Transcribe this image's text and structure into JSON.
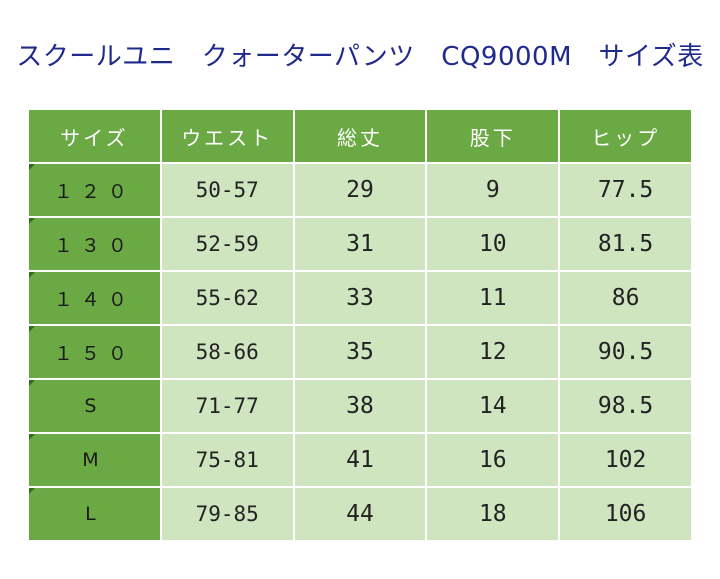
{
  "title": "スクールユニ　クォーターパンツ　CQ9000M　サイズ表",
  "headers": [
    "サイズ",
    "ウエスト",
    "総丈",
    "股下",
    "ヒップ"
  ],
  "rows": [
    {
      "size": "１２０",
      "waist": "50-57",
      "length": "29",
      "inseam": "9",
      "hip": "77.5"
    },
    {
      "size": "１３０",
      "waist": "52-59",
      "length": "31",
      "inseam": "10",
      "hip": "81.5"
    },
    {
      "size": "１４０",
      "waist": "55-62",
      "length": "33",
      "inseam": "11",
      "hip": "86"
    },
    {
      "size": "１５０",
      "waist": "58-66",
      "length": "35",
      "inseam": "12",
      "hip": "90.5"
    },
    {
      "size": "S",
      "waist": "71-77",
      "length": "38",
      "inseam": "14",
      "hip": "98.5"
    },
    {
      "size": "M",
      "waist": "75-81",
      "length": "41",
      "inseam": "16",
      "hip": "102"
    },
    {
      "size": "L",
      "waist": "79-85",
      "length": "44",
      "inseam": "18",
      "hip": "106"
    }
  ],
  "colors": {
    "title": "#1f2a8c",
    "header_bg": "#6ba944",
    "cell_bg": "#cfe5bf"
  }
}
